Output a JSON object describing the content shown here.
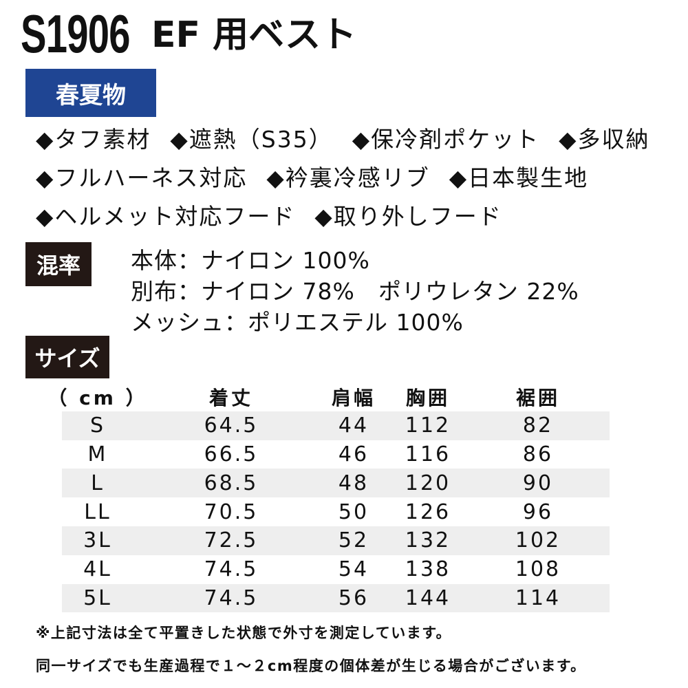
{
  "title": {
    "code": "S1906",
    "name": "EF 用ベスト"
  },
  "season_label": "春夏物",
  "features": [
    [
      "◆タフ素材",
      "◆遮熱（S35）",
      "◆保冷剤ポケット",
      "◆多収納"
    ],
    [
      "◆フルハーネス対応",
      "◆衿裏冷感リブ",
      "◆日本製生地"
    ],
    [
      "◆ヘルメット対応フード",
      "◆取り外しフード"
    ]
  ],
  "composition": {
    "label": "混率",
    "lines": [
      "本体：ナイロン 100%",
      "別布：ナイロン 78%　ポリウレタン 22%",
      "メッシュ：ポリエステル 100%"
    ]
  },
  "size_label": "サイズ",
  "size_table": {
    "headers": [
      "（ cm ）",
      "着丈",
      "肩幅",
      "胸囲",
      "裾囲"
    ],
    "rows": [
      [
        "S",
        "64.5",
        "44",
        "112",
        "82"
      ],
      [
        "M",
        "66.5",
        "46",
        "116",
        "86"
      ],
      [
        "L",
        "68.5",
        "48",
        "120",
        "90"
      ],
      [
        "LL",
        "70.5",
        "50",
        "126",
        "96"
      ],
      [
        "3L",
        "72.5",
        "52",
        "132",
        "102"
      ],
      [
        "4L",
        "74.5",
        "54",
        "138",
        "108"
      ],
      [
        "5L",
        "74.5",
        "56",
        "144",
        "114"
      ]
    ]
  },
  "notes": [
    "※上記寸法は全て平置きした状態で外寸を測定しています。",
    "同一サイズでも生産過程で１～２cm程度の個体差が生じる場合がございます。"
  ],
  "colors": {
    "season_label_bg": "#1f4593",
    "dark_label_bg": "#231815",
    "row_shade": "#eeeeee"
  }
}
